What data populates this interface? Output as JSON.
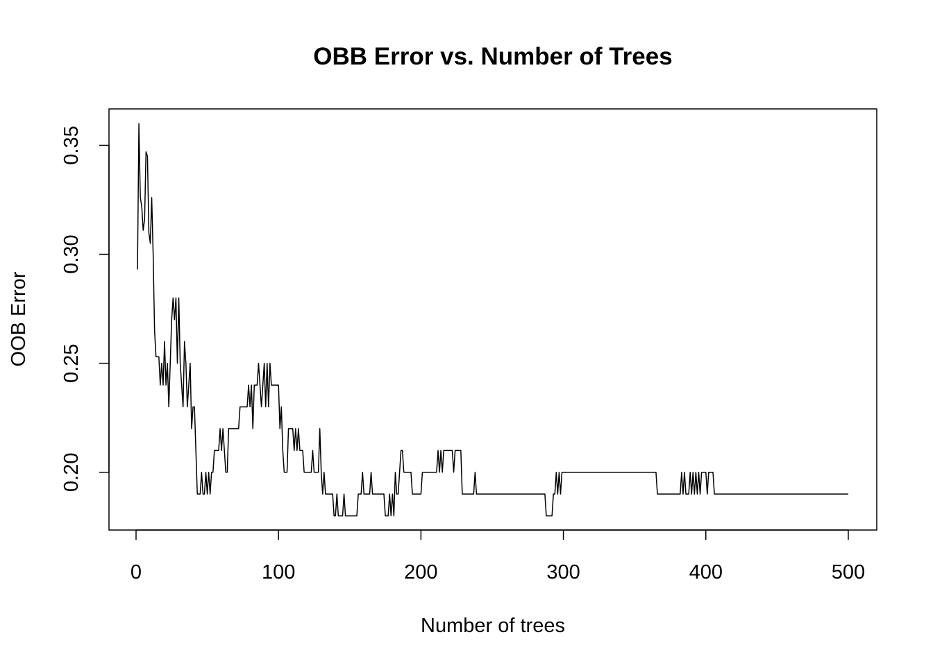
{
  "chart_data": {
    "type": "line",
    "title": "OBB Error vs. Number of Trees",
    "xlabel": "Number of trees",
    "ylabel": "OOB Error",
    "xlim": [
      -19,
      520
    ],
    "ylim": [
      0.1735,
      0.3667
    ],
    "x_ticks": [
      0,
      100,
      200,
      300,
      400,
      500
    ],
    "x_tick_labels": [
      "0",
      "100",
      "200",
      "300",
      "400",
      "500"
    ],
    "y_ticks": [
      0.2,
      0.25,
      0.3,
      0.35
    ],
    "y_tick_labels": [
      "0.20",
      "0.25",
      "0.30",
      "0.35"
    ],
    "grid": false,
    "legend": "none",
    "series": [
      {
        "name": "OOB",
        "color": "#000000",
        "points": [
          [
            1,
            0.293
          ],
          [
            2,
            0.36
          ],
          [
            3,
            0.326
          ],
          [
            4,
            0.322
          ],
          [
            5,
            0.311
          ],
          [
            6,
            0.316
          ],
          [
            7,
            0.347
          ],
          [
            8,
            0.345
          ],
          [
            9,
            0.31
          ],
          [
            10,
            0.305
          ],
          [
            11,
            0.326
          ],
          [
            12,
            0.3
          ],
          [
            13,
            0.265
          ],
          [
            14,
            0.253
          ],
          [
            16,
            0.253
          ],
          [
            17,
            0.24
          ],
          [
            18,
            0.25
          ],
          [
            19,
            0.24
          ],
          [
            20,
            0.26
          ],
          [
            21,
            0.24
          ],
          [
            22,
            0.25
          ],
          [
            23,
            0.23
          ],
          [
            24,
            0.25
          ],
          [
            25,
            0.27
          ],
          [
            26,
            0.28
          ],
          [
            27,
            0.27
          ],
          [
            28,
            0.28
          ],
          [
            29,
            0.25
          ],
          [
            30,
            0.28
          ],
          [
            31,
            0.25
          ],
          [
            32,
            0.24
          ],
          [
            33,
            0.23
          ],
          [
            34,
            0.26
          ],
          [
            35,
            0.25
          ],
          [
            36,
            0.23
          ],
          [
            37,
            0.24
          ],
          [
            38,
            0.25
          ],
          [
            39,
            0.22
          ],
          [
            40,
            0.23
          ],
          [
            42,
            0.21
          ],
          [
            43,
            0.19
          ],
          [
            45,
            0.19
          ],
          [
            46,
            0.2
          ],
          [
            47,
            0.19
          ],
          [
            49,
            0.2
          ],
          [
            50,
            0.19
          ],
          [
            51,
            0.2
          ],
          [
            52,
            0.19
          ],
          [
            53,
            0.2
          ],
          [
            55,
            0.21
          ],
          [
            58,
            0.21
          ],
          [
            59,
            0.22
          ],
          [
            60,
            0.21
          ],
          [
            61,
            0.22
          ],
          [
            62,
            0.21
          ],
          [
            63,
            0.2
          ],
          [
            65,
            0.22
          ],
          [
            72,
            0.22
          ],
          [
            73,
            0.23
          ],
          [
            78,
            0.23
          ],
          [
            79,
            0.24
          ],
          [
            80,
            0.23
          ],
          [
            81,
            0.24
          ],
          [
            82,
            0.22
          ],
          [
            83,
            0.24
          ],
          [
            85,
            0.24
          ],
          [
            86,
            0.25
          ],
          [
            87,
            0.24
          ],
          [
            88,
            0.23
          ],
          [
            89,
            0.24
          ],
          [
            90,
            0.25
          ],
          [
            91,
            0.23
          ],
          [
            92,
            0.25
          ],
          [
            93,
            0.23
          ],
          [
            94,
            0.25
          ],
          [
            95,
            0.24
          ],
          [
            100,
            0.24
          ],
          [
            101,
            0.22
          ],
          [
            102,
            0.23
          ],
          [
            103,
            0.21
          ],
          [
            104,
            0.2
          ],
          [
            106,
            0.2
          ],
          [
            107,
            0.22
          ],
          [
            110,
            0.22
          ],
          [
            111,
            0.21
          ],
          [
            112,
            0.22
          ],
          [
            113,
            0.21
          ],
          [
            114,
            0.22
          ],
          [
            115,
            0.21
          ],
          [
            117,
            0.21
          ],
          [
            118,
            0.2
          ],
          [
            123,
            0.2
          ],
          [
            124,
            0.21
          ],
          [
            125,
            0.2
          ],
          [
            128,
            0.2
          ],
          [
            129,
            0.22
          ],
          [
            130,
            0.2
          ],
          [
            131,
            0.19
          ],
          [
            132,
            0.2
          ],
          [
            133,
            0.19
          ],
          [
            138,
            0.19
          ],
          [
            139,
            0.18
          ],
          [
            141,
            0.19
          ],
          [
            142,
            0.18
          ],
          [
            145,
            0.18
          ],
          [
            146,
            0.19
          ],
          [
            147,
            0.18
          ],
          [
            155,
            0.18
          ],
          [
            156,
            0.19
          ],
          [
            158,
            0.19
          ],
          [
            159,
            0.2
          ],
          [
            160,
            0.19
          ],
          [
            164,
            0.19
          ],
          [
            165,
            0.2
          ],
          [
            166,
            0.19
          ],
          [
            174,
            0.19
          ],
          [
            175,
            0.18
          ],
          [
            177,
            0.18
          ],
          [
            178,
            0.19
          ],
          [
            179,
            0.18
          ],
          [
            180,
            0.19
          ],
          [
            181,
            0.18
          ],
          [
            182,
            0.2
          ],
          [
            183,
            0.19
          ],
          [
            185,
            0.2
          ],
          [
            186,
            0.21
          ],
          [
            188,
            0.2
          ],
          [
            193,
            0.2
          ],
          [
            194,
            0.19
          ],
          [
            200,
            0.19
          ],
          [
            201,
            0.2
          ],
          [
            211,
            0.2
          ],
          [
            212,
            0.21
          ],
          [
            213,
            0.2
          ],
          [
            214,
            0.21
          ],
          [
            215,
            0.2
          ],
          [
            216,
            0.21
          ],
          [
            222,
            0.21
          ],
          [
            223,
            0.2
          ],
          [
            224,
            0.21
          ],
          [
            228,
            0.21
          ],
          [
            229,
            0.19
          ],
          [
            237,
            0.19
          ],
          [
            238,
            0.2
          ],
          [
            239,
            0.19
          ],
          [
            287,
            0.19
          ],
          [
            288,
            0.18
          ],
          [
            292,
            0.18
          ],
          [
            293,
            0.19
          ],
          [
            295,
            0.2
          ],
          [
            296,
            0.19
          ],
          [
            297,
            0.2
          ],
          [
            298,
            0.19
          ],
          [
            299,
            0.2
          ],
          [
            365,
            0.2
          ],
          [
            366,
            0.19
          ],
          [
            382,
            0.19
          ],
          [
            383,
            0.2
          ],
          [
            384,
            0.19
          ],
          [
            385,
            0.2
          ],
          [
            386,
            0.19
          ],
          [
            388,
            0.19
          ],
          [
            389,
            0.2
          ],
          [
            390,
            0.19
          ],
          [
            391,
            0.2
          ],
          [
            392,
            0.19
          ],
          [
            393,
            0.2
          ],
          [
            394,
            0.19
          ],
          [
            395,
            0.2
          ],
          [
            396,
            0.19
          ],
          [
            397,
            0.2
          ],
          [
            400,
            0.2
          ],
          [
            401,
            0.19
          ],
          [
            402,
            0.2
          ],
          [
            405,
            0.2
          ],
          [
            406,
            0.19
          ],
          [
            500,
            0.19
          ]
        ]
      }
    ]
  }
}
